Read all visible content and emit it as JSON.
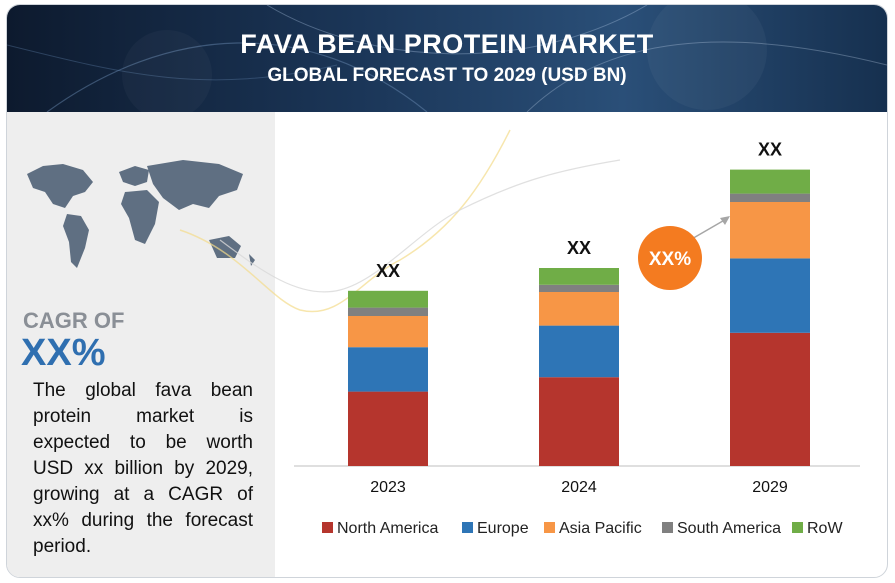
{
  "header": {
    "title": "FAVA BEAN PROTEIN MARKET",
    "subtitle": "GLOBAL FORECAST TO 2029 (USD BN)"
  },
  "left_panel": {
    "map_icon": "world-map-icon",
    "cagr_label": "CAGR OF",
    "cagr_value": "XX%",
    "description": "The global fava bean protein market is expected to be worth USD xx billion by 2029, growing at a CAGR of xx% during the forecast period."
  },
  "chart_data": {
    "type": "bar",
    "stacked": true,
    "categories": [
      "2023",
      "2024",
      "2029"
    ],
    "series": [
      {
        "name": "North America",
        "color": "#b5352d",
        "values": [
          62,
          74,
          111
        ]
      },
      {
        "name": "Europe",
        "color": "#2e75b6",
        "values": [
          37,
          43,
          62
        ]
      },
      {
        "name": "Asia Pacific",
        "color": "#f79646",
        "values": [
          26,
          28,
          47
        ]
      },
      {
        "name": "South America",
        "color": "#808080",
        "values": [
          7,
          6,
          7
        ]
      },
      {
        "name": "RoW",
        "color": "#70ad47",
        "values": [
          14,
          14,
          20
        ]
      }
    ],
    "data_labels": [
      "XX",
      "XX",
      "XX"
    ],
    "growth_badge": "XX%",
    "badge_color": "#f47b20",
    "title": "",
    "xlabel": "",
    "ylabel": "",
    "ylim": [
      0,
      250
    ],
    "grid": false,
    "legend_position": "bottom"
  }
}
